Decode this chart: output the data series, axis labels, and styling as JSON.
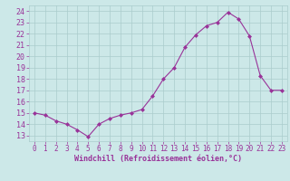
{
  "x": [
    0,
    1,
    2,
    3,
    4,
    5,
    6,
    7,
    8,
    9,
    10,
    11,
    12,
    13,
    14,
    15,
    16,
    17,
    18,
    19,
    20,
    21,
    22,
    23
  ],
  "y": [
    15.0,
    14.8,
    14.3,
    14.0,
    13.5,
    12.9,
    14.0,
    14.5,
    14.8,
    15.0,
    15.3,
    16.5,
    18.0,
    19.0,
    20.8,
    21.9,
    22.7,
    23.0,
    23.9,
    23.3,
    21.8,
    18.3,
    17.0,
    17.0
  ],
  "x_ticks": [
    0,
    1,
    2,
    3,
    4,
    5,
    6,
    7,
    8,
    9,
    10,
    11,
    12,
    13,
    14,
    15,
    16,
    17,
    18,
    19,
    20,
    21,
    22,
    23
  ],
  "x_tick_labels": [
    "0",
    "1",
    "2",
    "3",
    "4",
    "5",
    "6",
    "7",
    "8",
    "9",
    "10",
    "11",
    "12",
    "13",
    "14",
    "15",
    "16",
    "17",
    "18",
    "19",
    "20",
    "21",
    "22",
    "23"
  ],
  "y_ticks": [
    13,
    14,
    15,
    16,
    17,
    18,
    19,
    20,
    21,
    22,
    23,
    24
  ],
  "ylim": [
    12.5,
    24.5
  ],
  "xlim": [
    -0.5,
    23.5
  ],
  "xlabel": "Windchill (Refroidissement éolien,°C)",
  "line_color": "#993399",
  "marker": "D",
  "marker_size": 2.0,
  "bg_color": "#cce8e8",
  "grid_color": "#aacccc",
  "tick_color": "#993399",
  "font_family": "monospace",
  "tick_fontsize": 5.5,
  "xlabel_fontsize": 6.0,
  "ytick_fontsize": 6.0
}
